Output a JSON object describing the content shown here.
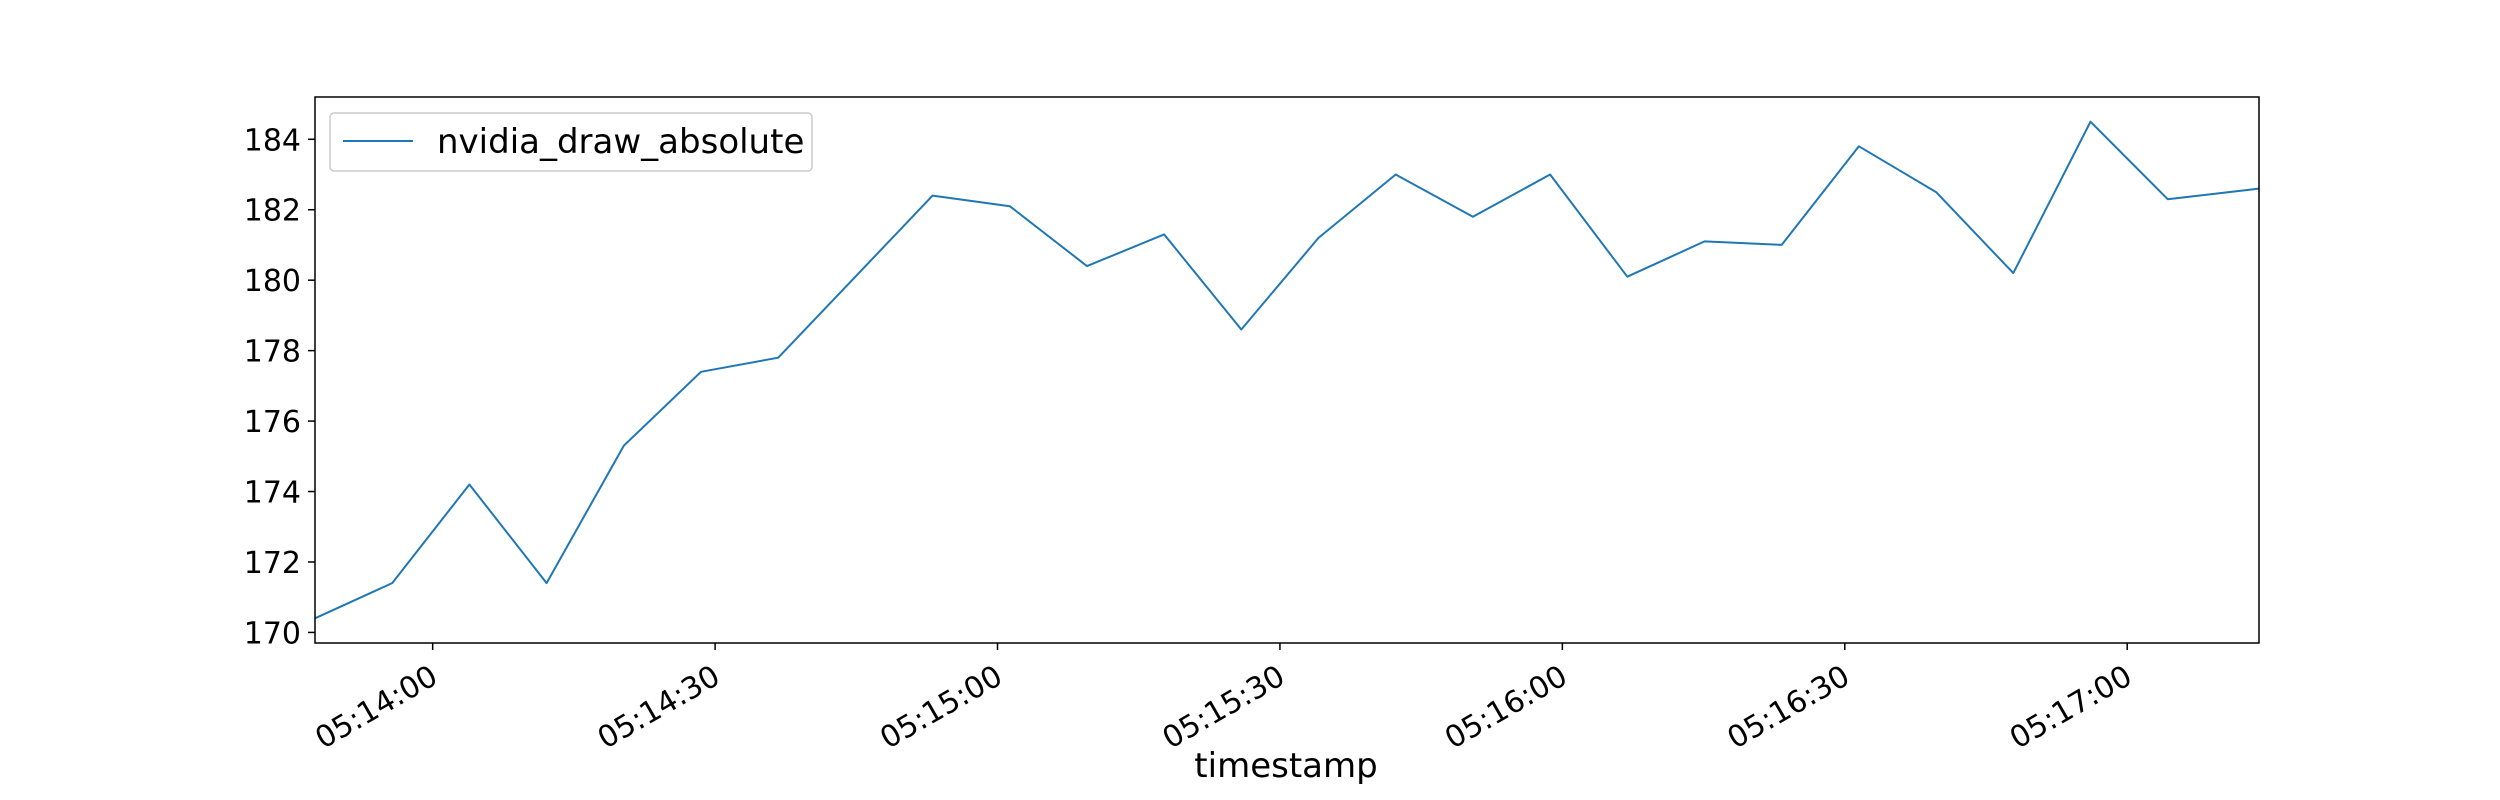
{
  "chart_data": {
    "type": "line",
    "xlabel": "timestamp",
    "ylabel": "",
    "title": "",
    "x_unit": "time (HH:MM:SS)",
    "xlim": [
      "05:13:47.5",
      "05:17:14"
    ],
    "ylim": [
      169.7,
      185.2
    ],
    "x_ticks": [
      "05:14:00",
      "05:14:30",
      "05:15:00",
      "05:15:30",
      "05:16:00",
      "05:16:30",
      "05:17:00"
    ],
    "y_ticks": [
      170,
      172,
      174,
      176,
      178,
      180,
      182,
      184
    ],
    "grid": false,
    "legend_position": "top-left",
    "series": [
      {
        "name": "nvidia_draw_absolute",
        "color": "#1f77b4",
        "x": [
          "05:13:47.5",
          "05:13:55.7",
          "05:14:03.9",
          "05:14:12.1",
          "05:14:20.3",
          "05:14:28.5",
          "05:14:36.7",
          "05:14:44.9",
          "05:14:53.1",
          "05:15:01.3",
          "05:15:09.5",
          "05:15:17.7",
          "05:15:25.9",
          "05:15:34.1",
          "05:15:42.3",
          "05:15:50.5",
          "05:15:58.7",
          "05:16:06.9",
          "05:16:15.1",
          "05:16:23.3",
          "05:16:31.5",
          "05:16:39.7",
          "05:16:47.9",
          "05:16:56.1",
          "05:17:04.3",
          "05:17:14"
        ],
        "values": [
          170.4,
          171.4,
          174.2,
          171.4,
          175.3,
          177.4,
          177.8,
          180.1,
          182.4,
          182.1,
          180.4,
          181.3,
          178.6,
          181.2,
          183.0,
          181.8,
          183.0,
          180.1,
          181.1,
          181.0,
          183.8,
          182.5,
          180.2,
          184.5,
          182.3,
          182.6
        ]
      }
    ]
  }
}
